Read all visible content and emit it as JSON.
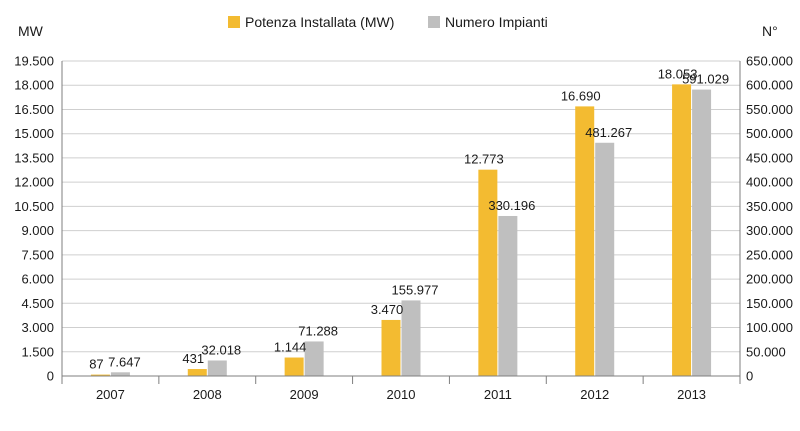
{
  "chart_data": {
    "type": "bar",
    "categories": [
      "2007",
      "2008",
      "2009",
      "2010",
      "2011",
      "2012",
      "2013"
    ],
    "series": [
      {
        "name": "Potenza Installata (MW)",
        "axis": "left",
        "color": "#f3bb31",
        "values": [
          87,
          431,
          1144,
          3470,
          12773,
          16690,
          18053
        ],
        "labels": [
          "87",
          "431",
          "1.144",
          "3.470",
          "12.773",
          "16.690",
          "18.053"
        ]
      },
      {
        "name": "Numero Impianti",
        "axis": "right",
        "color": "#bfbfbf",
        "values": [
          7647,
          32018,
          71288,
          155977,
          330196,
          481267,
          591029
        ],
        "labels": [
          "7.647",
          "32.018",
          "71.288",
          "155.977",
          "330.196",
          "481.267",
          "591.029"
        ]
      }
    ],
    "ylabel_left": "MW",
    "ylabel_right": "N°",
    "ylim_left": [
      0,
      19500
    ],
    "ylim_right": [
      0,
      650000
    ],
    "yticks_left": [
      "0",
      "1.500",
      "3.000",
      "4.500",
      "6.000",
      "7.500",
      "9.000",
      "10.500",
      "12.000",
      "13.500",
      "15.000",
      "16.500",
      "18.000",
      "19.500"
    ],
    "yticks_right": [
      "0",
      "50.000",
      "100.000",
      "150.000",
      "200.000",
      "250.000",
      "300.000",
      "350.000",
      "400.000",
      "450.000",
      "500.000",
      "550.000",
      "600.000",
      "650.000"
    ],
    "legend_position": "top",
    "grid": true
  }
}
